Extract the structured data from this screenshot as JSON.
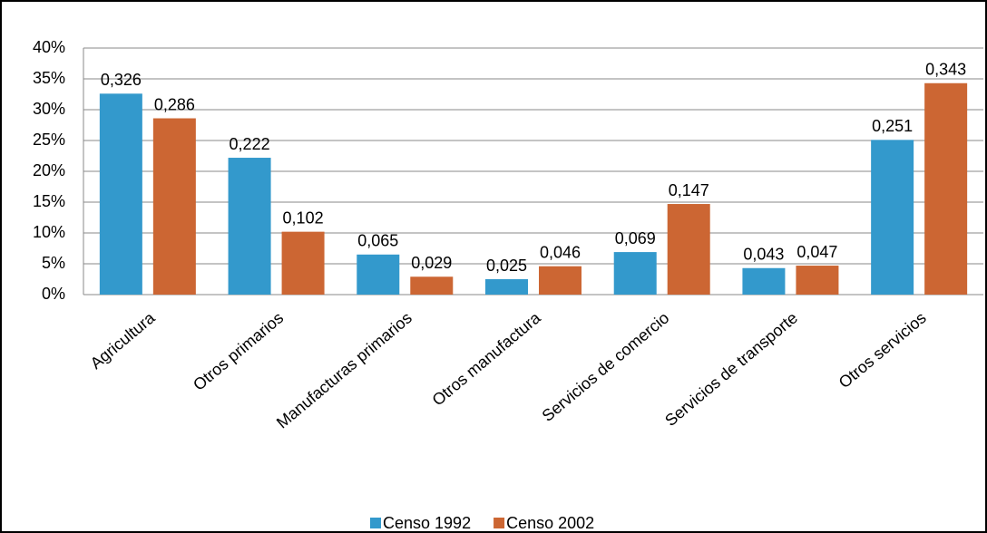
{
  "chart_data": {
    "type": "bar",
    "categories": [
      "Agricultura",
      "Otros primarios",
      "Manufacturas primarios",
      "Otros manufactura",
      "Servicios de comercio",
      "Servicios de transporte",
      "Otros servicios"
    ],
    "series": [
      {
        "name": "Censo 1992",
        "color": "#3399cc",
        "values": [
          32.6,
          22.2,
          6.5,
          2.5,
          6.9,
          4.3,
          25.1
        ],
        "value_labels": [
          "0,326",
          "0,222",
          "0,065",
          "0,025",
          "0,069",
          "0,043",
          "0,251"
        ]
      },
      {
        "name": "Censo 2002",
        "color": "#cc6633",
        "values": [
          28.6,
          10.2,
          2.9,
          4.6,
          14.7,
          4.7,
          34.3
        ],
        "value_labels": [
          "0,286",
          "0,102",
          "0,029",
          "0,046",
          "0,147",
          "0,047",
          "0,343"
        ]
      }
    ],
    "ylim": [
      0,
      40
    ],
    "yticks": [
      {
        "value": 0,
        "label": "0%"
      },
      {
        "value": 5,
        "label": "5%"
      },
      {
        "value": 10,
        "label": "10%"
      },
      {
        "value": 15,
        "label": "15%"
      },
      {
        "value": 20,
        "label": "20%"
      },
      {
        "value": 25,
        "label": "25%"
      },
      {
        "value": 30,
        "label": "30%"
      },
      {
        "value": 35,
        "label": "35%"
      },
      {
        "value": 40,
        "label": "40%"
      }
    ],
    "grid": true,
    "legend": "bottom"
  }
}
